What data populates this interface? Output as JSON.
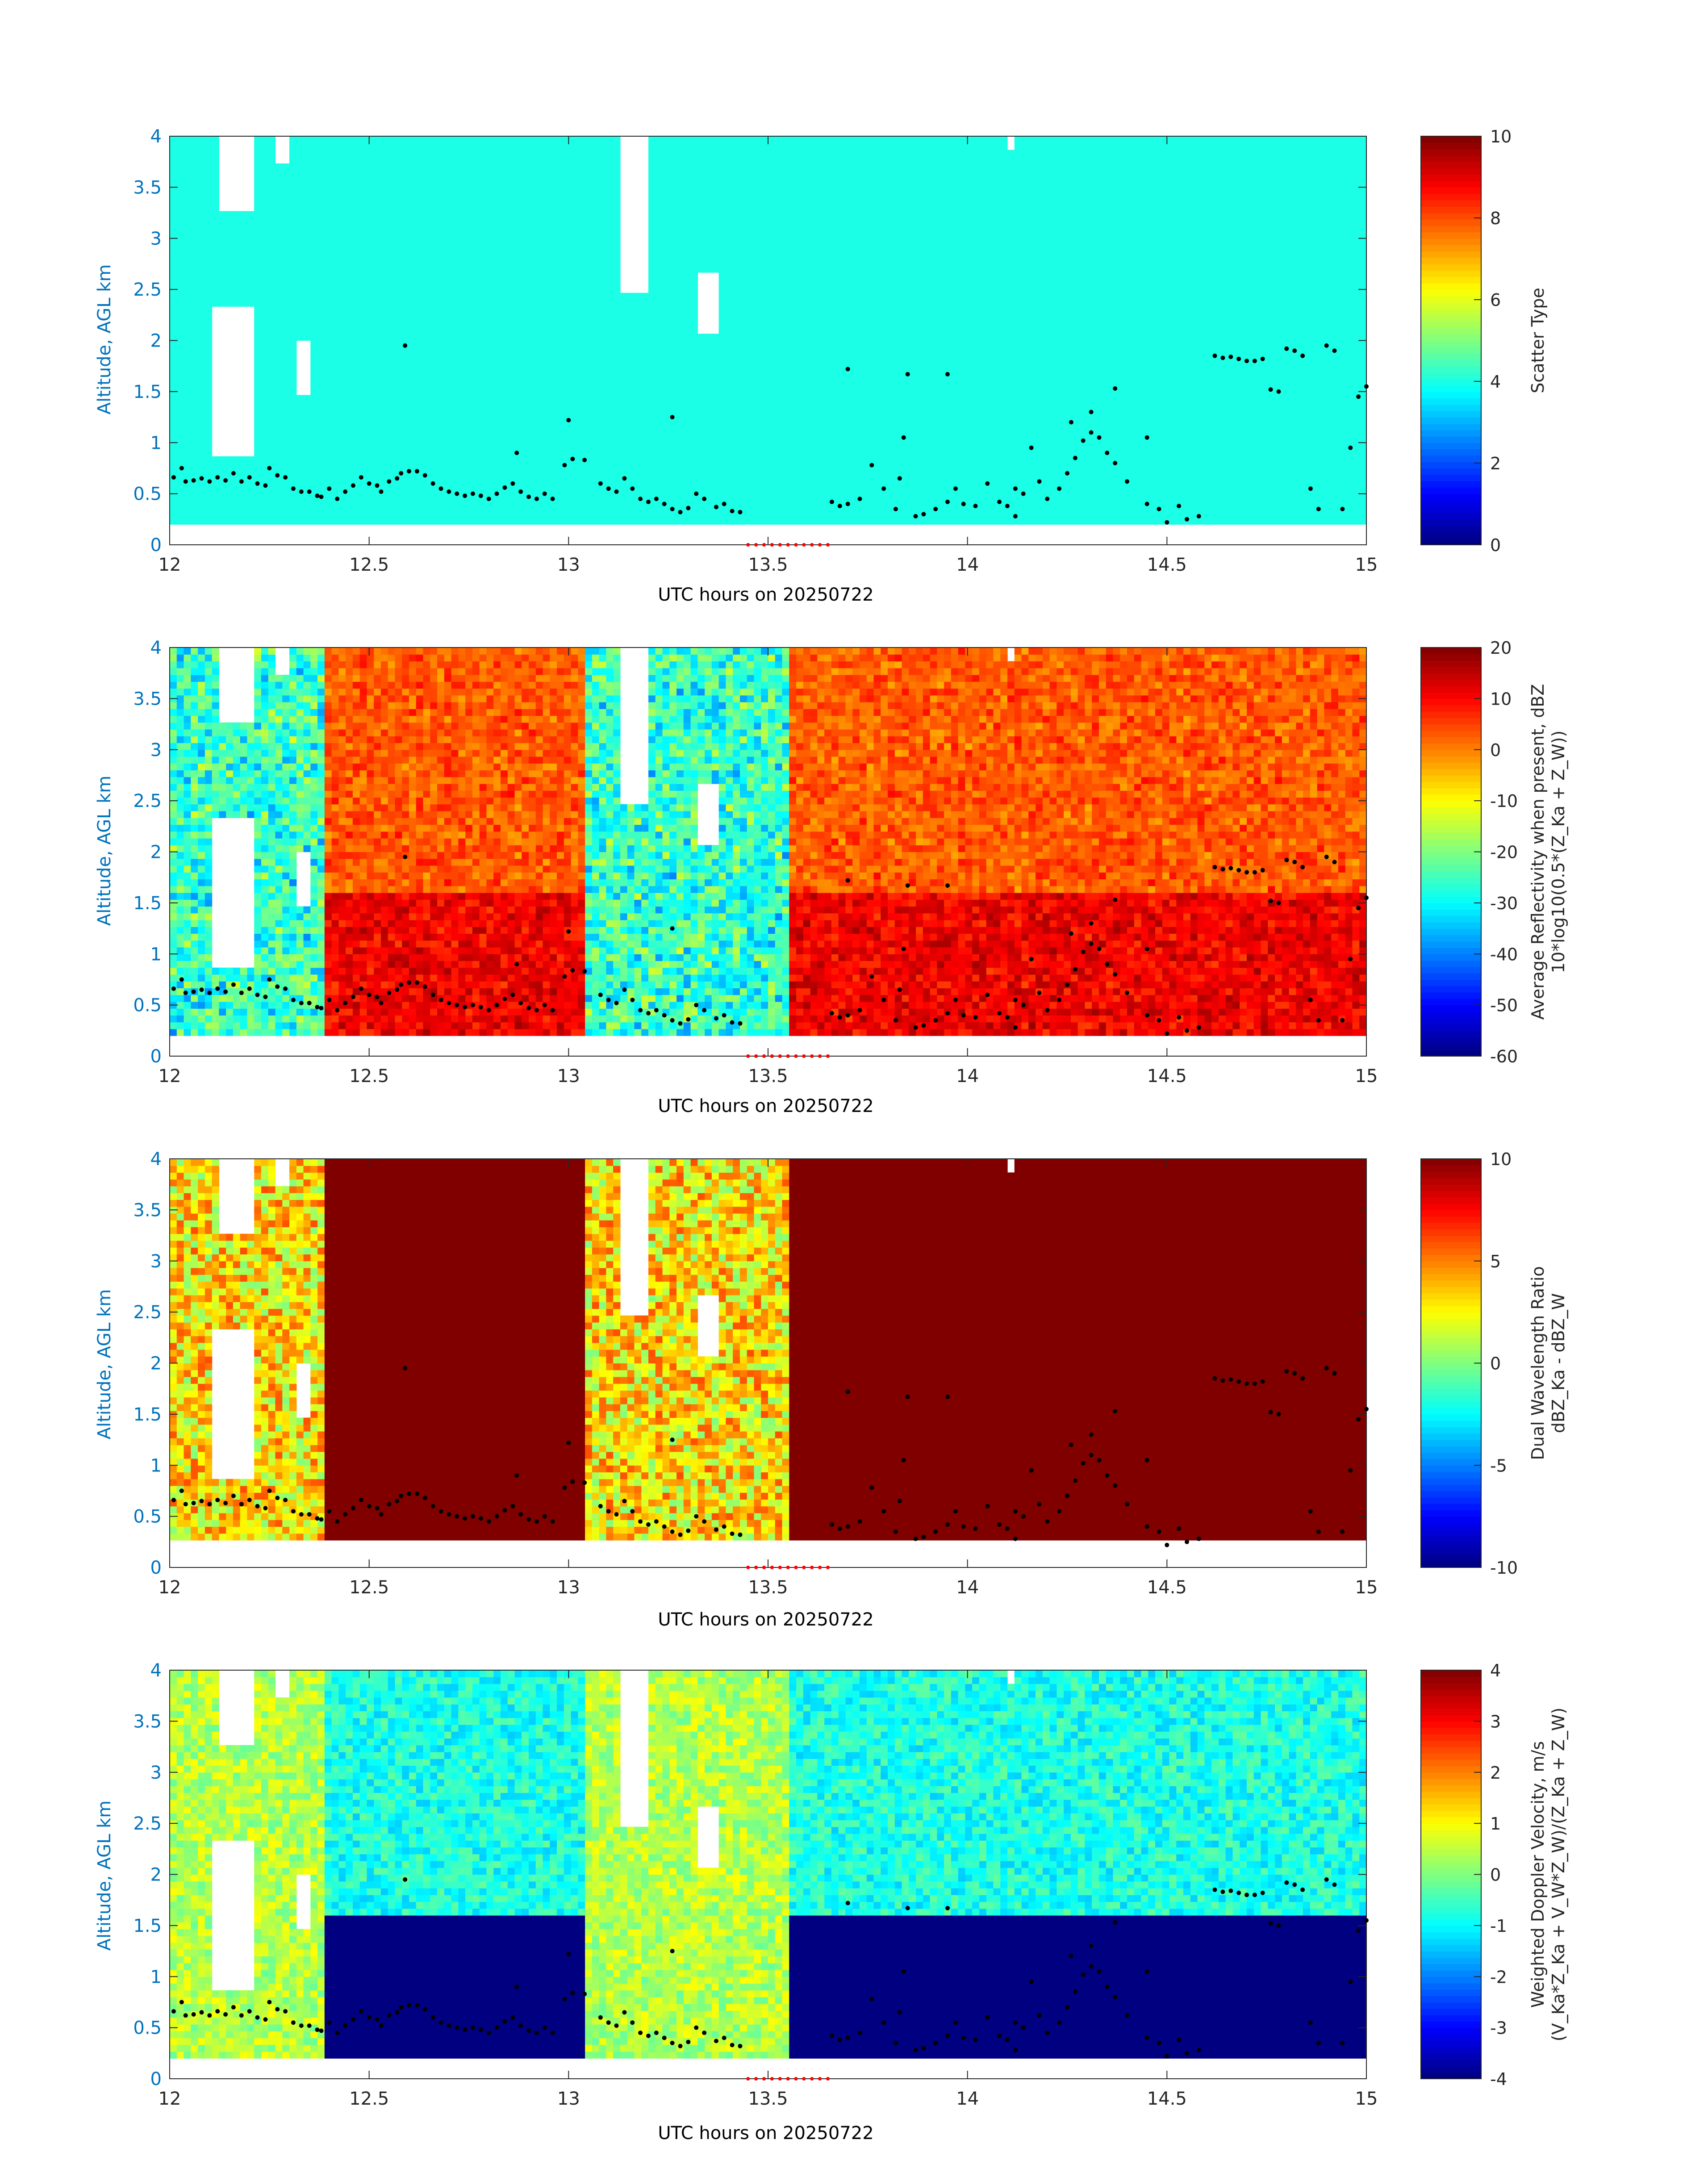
{
  "figure": {
    "x_range_hours": [
      12,
      15
    ],
    "y_range_km": [
      0,
      4
    ],
    "x_ticks": [
      "12",
      "12.5",
      "13",
      "13.5",
      "14",
      "14.5",
      "15"
    ],
    "y_ticks": [
      "0",
      "0.5",
      "1",
      "1.5",
      "2",
      "2.5",
      "3",
      "3.5",
      "4"
    ],
    "ylabel": "Altitude, AGL km",
    "xlabel": "UTC hours on 20250722",
    "colormap": "jet",
    "colors": {
      "axis_label": "#0072BD",
      "overlay_points": "#000000",
      "marker_points": "#ff0000",
      "missing_data": "#ffffff"
    }
  },
  "chart_data": [
    {
      "type": "heatmap",
      "name": "scatter-type",
      "colorbar_label": [
        "Scatter Type"
      ],
      "colorbar_ticks": [
        "0",
        "2",
        "4",
        "6",
        "8",
        "10"
      ],
      "clim": [
        0,
        10
      ],
      "field": "scatter"
    },
    {
      "type": "heatmap",
      "name": "reflectivity",
      "colorbar_label": [
        "Average Reflectivity when present, dBZ",
        "10*log10(0.5*(Z_Ka + Z_W))"
      ],
      "colorbar_ticks": [
        "-60",
        "-50",
        "-40",
        "-30",
        "-20",
        "-10",
        "0",
        "10",
        "20"
      ],
      "clim": [
        -60,
        20
      ],
      "field": "reflectivity"
    },
    {
      "type": "heatmap",
      "name": "dual-wavelength-ratio",
      "colorbar_label": [
        "Dual Wavelength Ratio",
        "dBZ_Ka - dBZ_W"
      ],
      "colorbar_ticks": [
        "-10",
        "-5",
        "0",
        "5",
        "10"
      ],
      "clim": [
        -10,
        10
      ],
      "field": "dwr"
    },
    {
      "type": "heatmap",
      "name": "doppler-velocity",
      "colorbar_label": [
        "Weighted Doppler Velocity, m/s",
        "(V_Ka*Z_Ka + V_W*Z_W)/(Z_Ka + Z_W)"
      ],
      "colorbar_ticks": [
        "-4",
        "-3",
        "-2",
        "-1",
        "0",
        "1",
        "2",
        "3",
        "4"
      ],
      "clim": [
        -4,
        4
      ],
      "field": "velocity"
    }
  ],
  "overlay": {
    "cloud_base_points": [
      [
        12.01,
        0.66
      ],
      [
        12.03,
        0.75
      ],
      [
        12.04,
        0.62
      ],
      [
        12.06,
        0.63
      ],
      [
        12.08,
        0.65
      ],
      [
        12.1,
        0.62
      ],
      [
        12.12,
        0.66
      ],
      [
        12.14,
        0.63
      ],
      [
        12.16,
        0.7
      ],
      [
        12.18,
        0.62
      ],
      [
        12.2,
        0.66
      ],
      [
        12.22,
        0.6
      ],
      [
        12.24,
        0.58
      ],
      [
        12.25,
        0.75
      ],
      [
        12.27,
        0.68
      ],
      [
        12.29,
        0.66
      ],
      [
        12.31,
        0.55
      ],
      [
        12.33,
        0.52
      ],
      [
        12.35,
        0.52
      ],
      [
        12.37,
        0.48
      ],
      [
        12.38,
        0.47
      ],
      [
        12.4,
        0.55
      ],
      [
        12.42,
        0.45
      ],
      [
        12.44,
        0.52
      ],
      [
        12.46,
        0.58
      ],
      [
        12.48,
        0.66
      ],
      [
        12.5,
        0.6
      ],
      [
        12.52,
        0.58
      ],
      [
        12.53,
        0.52
      ],
      [
        12.55,
        0.62
      ],
      [
        12.57,
        0.65
      ],
      [
        12.58,
        0.7
      ],
      [
        12.6,
        0.72
      ],
      [
        12.62,
        0.72
      ],
      [
        12.64,
        0.68
      ],
      [
        12.66,
        0.6
      ],
      [
        12.68,
        0.55
      ],
      [
        12.7,
        0.52
      ],
      [
        12.72,
        0.5
      ],
      [
        12.74,
        0.48
      ],
      [
        12.76,
        0.5
      ],
      [
        12.78,
        0.48
      ],
      [
        12.8,
        0.45
      ],
      [
        12.82,
        0.5
      ],
      [
        12.84,
        0.56
      ],
      [
        12.86,
        0.6
      ],
      [
        12.88,
        0.52
      ],
      [
        12.9,
        0.47
      ],
      [
        12.92,
        0.45
      ],
      [
        12.94,
        0.5
      ],
      [
        12.96,
        0.45
      ],
      [
        12.99,
        0.78
      ],
      [
        13.01,
        0.84
      ],
      [
        13.04,
        0.83
      ],
      [
        13.08,
        0.6
      ],
      [
        13.1,
        0.55
      ],
      [
        13.12,
        0.52
      ],
      [
        13.14,
        0.65
      ],
      [
        13.16,
        0.55
      ],
      [
        13.18,
        0.45
      ],
      [
        13.2,
        0.42
      ],
      [
        13.22,
        0.45
      ],
      [
        13.24,
        0.4
      ],
      [
        13.26,
        0.35
      ],
      [
        13.28,
        0.32
      ],
      [
        13.3,
        0.36
      ],
      [
        13.32,
        0.5
      ],
      [
        13.34,
        0.45
      ],
      [
        13.37,
        0.37
      ],
      [
        13.39,
        0.4
      ],
      [
        13.41,
        0.33
      ],
      [
        13.43,
        0.32
      ],
      [
        13.66,
        0.42
      ],
      [
        13.68,
        0.38
      ],
      [
        13.7,
        0.4
      ],
      [
        13.73,
        0.45
      ],
      [
        13.76,
        0.78
      ],
      [
        13.79,
        0.55
      ],
      [
        13.82,
        0.35
      ],
      [
        13.83,
        0.65
      ],
      [
        13.87,
        0.28
      ],
      [
        13.89,
        0.3
      ],
      [
        13.92,
        0.35
      ],
      [
        13.95,
        0.42
      ],
      [
        13.97,
        0.55
      ],
      [
        13.99,
        0.4
      ],
      [
        14.02,
        0.38
      ],
      [
        14.05,
        0.6
      ],
      [
        14.08,
        0.42
      ],
      [
        14.1,
        0.38
      ],
      [
        14.12,
        0.55
      ],
      [
        14.14,
        0.5
      ],
      [
        14.16,
        0.95
      ],
      [
        14.18,
        0.62
      ],
      [
        14.2,
        0.45
      ],
      [
        14.23,
        0.55
      ],
      [
        14.25,
        0.7
      ],
      [
        14.27,
        0.85
      ],
      [
        14.29,
        1.02
      ],
      [
        14.31,
        1.1
      ],
      [
        14.33,
        1.05
      ],
      [
        14.35,
        0.9
      ],
      [
        14.37,
        0.8
      ],
      [
        14.4,
        0.62
      ],
      [
        14.45,
        0.4
      ],
      [
        14.48,
        0.35
      ],
      [
        14.5,
        0.22
      ],
      [
        14.53,
        0.38
      ],
      [
        14.55,
        0.25
      ],
      [
        14.58,
        0.28
      ],
      [
        14.62,
        1.85
      ],
      [
        14.64,
        1.83
      ],
      [
        14.66,
        1.84
      ],
      [
        14.68,
        1.82
      ],
      [
        14.7,
        1.8
      ],
      [
        14.72,
        1.8
      ],
      [
        14.74,
        1.82
      ],
      [
        14.76,
        1.52
      ],
      [
        14.78,
        1.5
      ],
      [
        14.8,
        1.92
      ],
      [
        14.82,
        1.9
      ],
      [
        14.84,
        1.85
      ],
      [
        14.86,
        0.55
      ],
      [
        14.88,
        0.35
      ],
      [
        14.9,
        1.95
      ],
      [
        14.92,
        1.9
      ],
      [
        14.94,
        0.35
      ],
      [
        14.96,
        0.95
      ],
      [
        14.98,
        1.45
      ],
      [
        15.0,
        1.55
      ],
      [
        12.59,
        1.95
      ],
      [
        12.87,
        0.9
      ],
      [
        13.0,
        1.22
      ],
      [
        13.26,
        1.25
      ],
      [
        13.7,
        1.72
      ],
      [
        13.85,
        1.67
      ],
      [
        13.95,
        1.67
      ],
      [
        13.84,
        1.05
      ],
      [
        14.12,
        0.28
      ],
      [
        14.26,
        1.2
      ],
      [
        14.31,
        1.3
      ],
      [
        14.37,
        1.53
      ],
      [
        14.45,
        1.05
      ]
    ],
    "marker_points_hours": [
      13.45,
      13.47,
      13.49,
      13.51,
      13.53,
      13.55,
      13.57,
      13.59,
      13.61,
      13.63,
      13.65
    ]
  }
}
